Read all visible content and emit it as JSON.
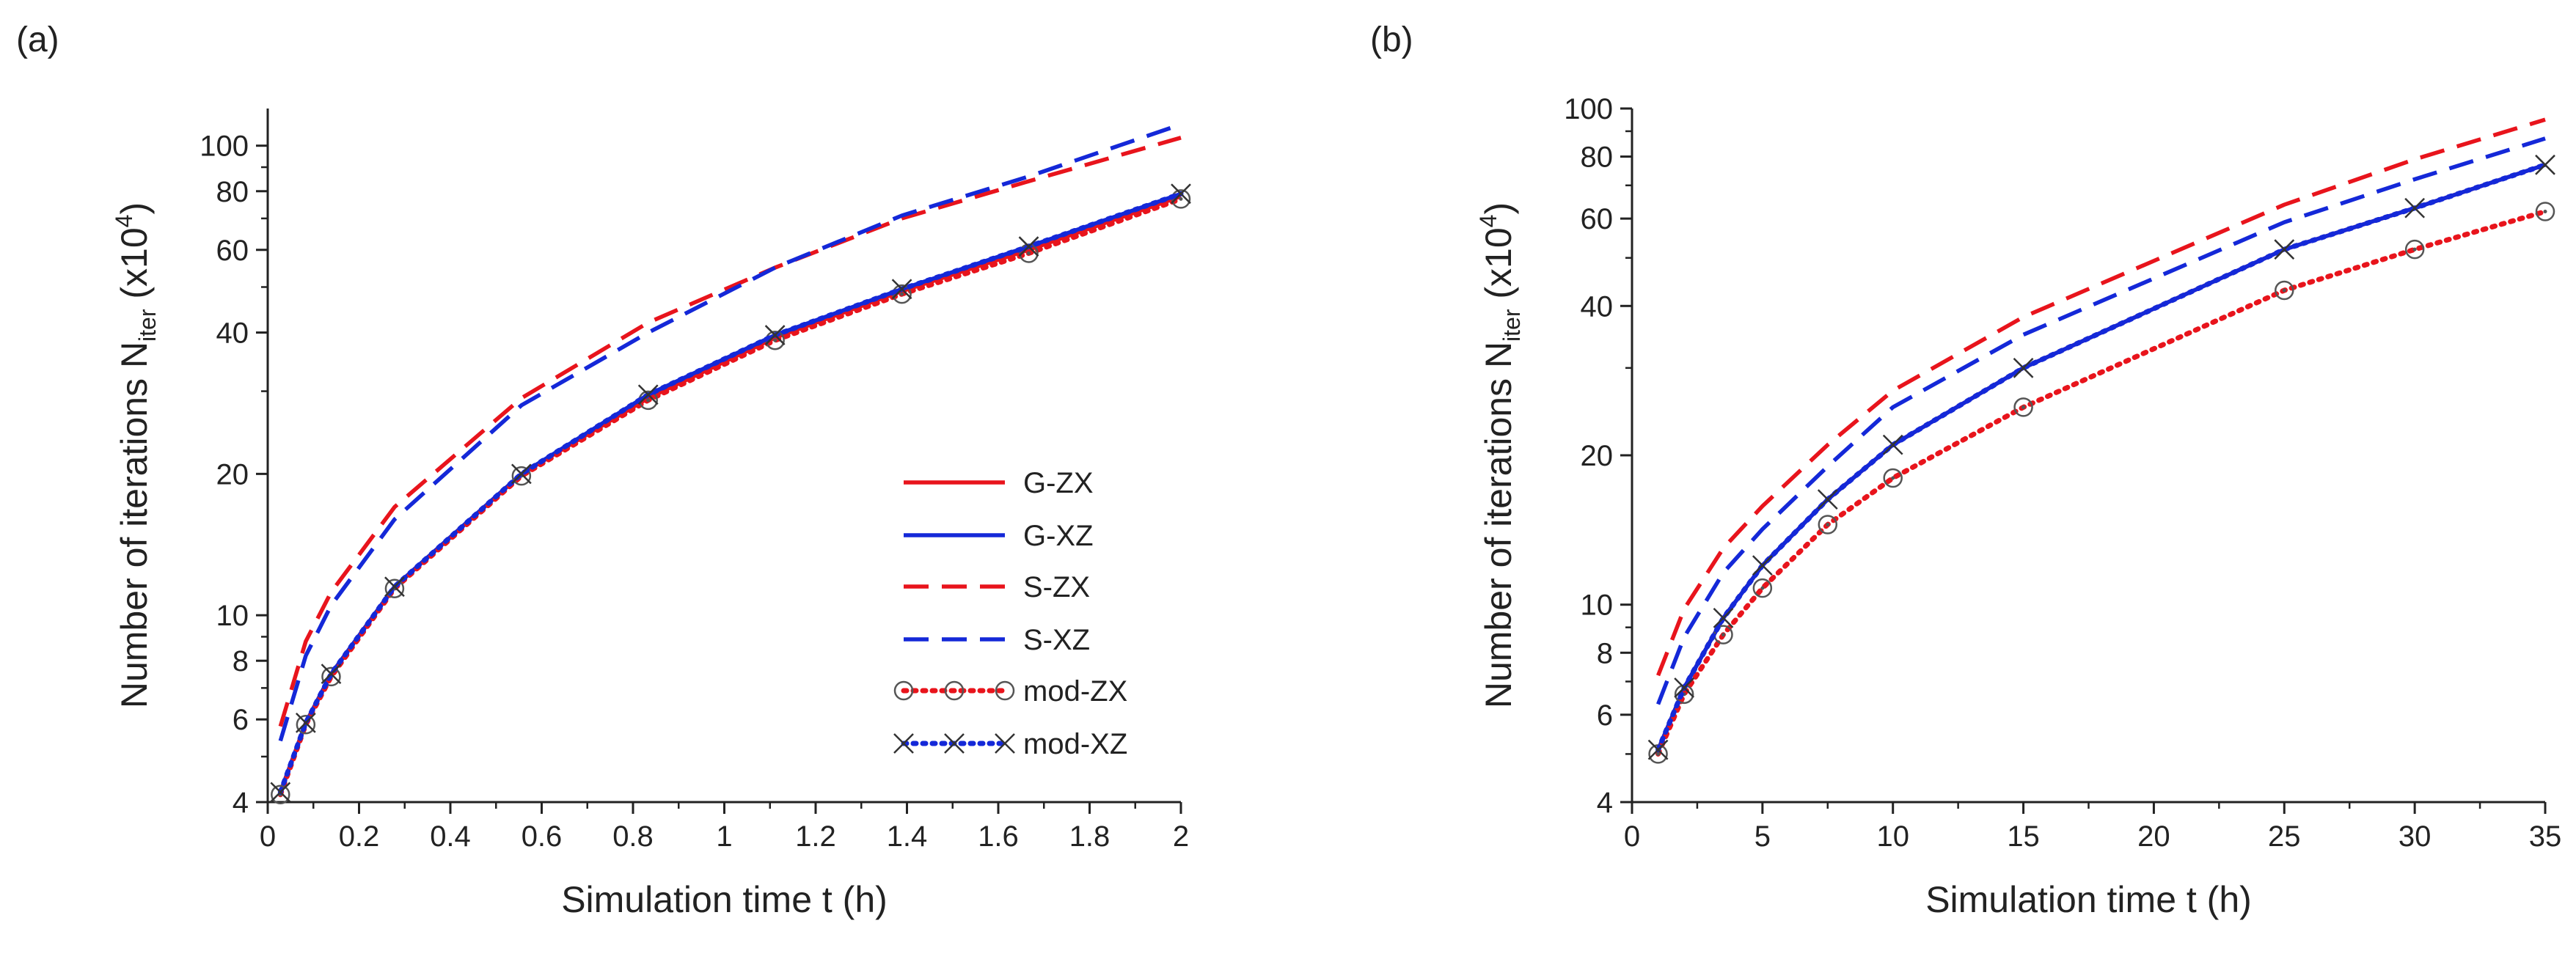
{
  "figure": {
    "panels": [
      "(a)",
      "(b)"
    ]
  },
  "chart_data": [
    {
      "type": "line",
      "panel_label": "(a)",
      "xlabel": "Simulation time t (h)",
      "ylabel_main": "Number of iterations N",
      "ylabel_sub": "iter",
      "ylabel_suffix": "(x10",
      "ylabel_sup": "4",
      "ylabel_end": ")",
      "yscale": "log",
      "xlim": [
        0,
        2
      ],
      "ylim": [
        4,
        120
      ],
      "xticks": [
        0,
        0.2,
        0.4,
        0.6,
        0.8,
        1,
        1.2,
        1.4,
        1.6,
        1.8,
        2
      ],
      "xtick_labels": [
        "0",
        "0.2",
        "0.4",
        "0.6",
        "0.8",
        "1",
        "1.2",
        "1.4",
        "1.6",
        "1.8",
        "2"
      ],
      "yticks": [
        4,
        6,
        8,
        10,
        20,
        40,
        60,
        80,
        100
      ],
      "ytick_labels": [
        "4",
        "6",
        "8",
        "10",
        "20",
        "40",
        "60",
        "80",
        "100"
      ],
      "yminor": [
        5,
        7,
        9,
        30,
        50,
        70,
        90
      ],
      "legend": "center-right",
      "series": [
        {
          "name": "G-ZX",
          "color": "#e8141c",
          "style": "solid",
          "marker": "none",
          "x": [
            0.0278,
            0.0833,
            0.1389,
            0.2778,
            0.5556,
            0.8333,
            1.1111,
            1.3889,
            1.6667,
            2.0
          ],
          "y": [
            4.2,
            5.9,
            7.5,
            11.5,
            20,
            29,
            39,
            49,
            60,
            78
          ]
        },
        {
          "name": "G-XZ",
          "color": "#1428d8",
          "style": "solid",
          "marker": "none",
          "x": [
            0.0278,
            0.0833,
            0.1389,
            0.2778,
            0.5556,
            0.8333,
            1.1111,
            1.3889,
            1.6667,
            2.0
          ],
          "y": [
            4.2,
            5.9,
            7.5,
            11.5,
            20,
            29.5,
            39.5,
            49.5,
            61,
            79
          ]
        },
        {
          "name": "S-ZX",
          "color": "#e8141c",
          "style": "dashed",
          "marker": "none",
          "x": [
            0.0278,
            0.0833,
            0.1389,
            0.2778,
            0.5556,
            0.8333,
            1.1111,
            1.3889,
            1.6667,
            2.0
          ],
          "y": [
            5.8,
            8.8,
            11.2,
            17,
            29,
            42,
            55,
            70,
            84,
            104
          ]
        },
        {
          "name": "S-XZ",
          "color": "#1428d8",
          "style": "dashed",
          "marker": "none",
          "x": [
            0.0278,
            0.0833,
            0.1389,
            0.2778,
            0.5556,
            0.8333,
            1.1111,
            1.3889,
            1.6667,
            2.0
          ],
          "y": [
            5.4,
            8.2,
            10.5,
            16,
            28,
            40,
            55,
            71,
            86,
            111
          ]
        },
        {
          "name": "mod-ZX",
          "color": "#e8141c",
          "style": "dotted",
          "marker": "circle",
          "x": [
            0.0278,
            0.0833,
            0.1389,
            0.2778,
            0.5556,
            0.8333,
            1.1111,
            1.3889,
            1.6667,
            2.0
          ],
          "y": [
            4.15,
            5.85,
            7.4,
            11.4,
            19.8,
            28.7,
            38.5,
            48.3,
            59,
            77
          ]
        },
        {
          "name": "mod-XZ",
          "color": "#1428d8",
          "style": "dotted",
          "marker": "x",
          "x": [
            0.0278,
            0.0833,
            0.1389,
            0.2778,
            0.5556,
            0.8333,
            1.1111,
            1.3889,
            1.6667,
            2.0
          ],
          "y": [
            4.2,
            5.9,
            7.5,
            11.5,
            20,
            29.5,
            39.5,
            49.5,
            61,
            79
          ]
        }
      ]
    },
    {
      "type": "line",
      "panel_label": "(b)",
      "xlabel": "Simulation time t (h)",
      "ylabel_main": "Number of iterations N",
      "ylabel_sub": "iter",
      "ylabel_suffix": "(x10",
      "ylabel_sup": "4",
      "ylabel_end": ")",
      "yscale": "log",
      "xlim": [
        0,
        35
      ],
      "ylim": [
        4,
        100
      ],
      "xticks": [
        0,
        5,
        10,
        15,
        20,
        25,
        30,
        35
      ],
      "xtick_labels": [
        "0",
        "5",
        "10",
        "15",
        "20",
        "25",
        "30",
        "35"
      ],
      "yticks": [
        4,
        6,
        8,
        10,
        20,
        40,
        60,
        80,
        100
      ],
      "ytick_labels": [
        "4",
        "6",
        "8",
        "10",
        "20",
        "40",
        "60",
        "80",
        "100"
      ],
      "yminor": [
        5,
        7,
        9,
        30,
        50,
        70,
        90
      ],
      "legend": "none",
      "series": [
        {
          "name": "G-ZX",
          "color": "#e8141c",
          "style": "solid",
          "marker": "none",
          "x": [
            1,
            2,
            3.5,
            5,
            7.5,
            10,
            15,
            25,
            30,
            35
          ],
          "y": [
            5.1,
            6.8,
            9.4,
            12,
            16.3,
            21,
            30,
            52,
            63,
            77
          ]
        },
        {
          "name": "G-XZ",
          "color": "#1428d8",
          "style": "solid",
          "marker": "none",
          "x": [
            1,
            2,
            3.5,
            5,
            7.5,
            10,
            15,
            25,
            30,
            35
          ],
          "y": [
            5.1,
            6.8,
            9.4,
            12,
            16.3,
            21,
            30,
            52,
            63,
            77
          ]
        },
        {
          "name": "S-ZX",
          "color": "#e8141c",
          "style": "dashed",
          "marker": "none",
          "x": [
            1,
            2,
            3.5,
            5,
            7.5,
            10,
            15,
            25,
            30,
            35
          ],
          "y": [
            7.2,
            9.8,
            13,
            15.8,
            21,
            27,
            38,
            64,
            79,
            95
          ]
        },
        {
          "name": "S-XZ",
          "color": "#1428d8",
          "style": "dashed",
          "marker": "none",
          "x": [
            1,
            2,
            3.5,
            5,
            7.5,
            10,
            15,
            25,
            30,
            35
          ],
          "y": [
            6.3,
            8.6,
            11.6,
            14.2,
            19,
            25,
            35,
            59,
            72,
            87
          ]
        },
        {
          "name": "mod-ZX",
          "color": "#e8141c",
          "style": "dotted",
          "marker": "circle",
          "x": [
            1,
            2,
            3.5,
            5,
            7.5,
            10,
            15,
            25,
            30,
            35
          ],
          "y": [
            5,
            6.6,
            8.7,
            10.8,
            14.5,
            18,
            25,
            43,
            52,
            62
          ]
        },
        {
          "name": "mod-XZ",
          "color": "#1428d8",
          "style": "dotted",
          "marker": "x",
          "x": [
            1,
            2,
            3.5,
            5,
            7.5,
            10,
            15,
            25,
            30,
            35
          ],
          "y": [
            5.1,
            6.8,
            9.4,
            12,
            16.3,
            21,
            30,
            52,
            63,
            77
          ]
        }
      ]
    }
  ]
}
